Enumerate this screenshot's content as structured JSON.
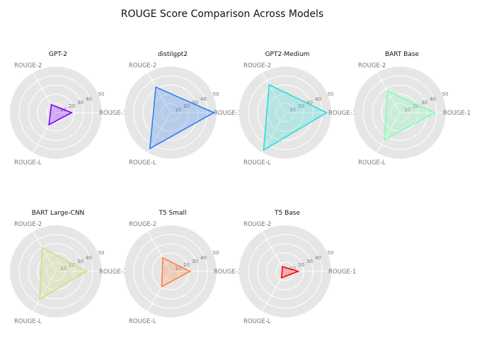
{
  "chart_data": {
    "type": "radar",
    "title": "ROUGE Score Comparison Across Models",
    "axes": [
      "ROUGE-1",
      "ROUGE-2",
      "ROUGE-L"
    ],
    "r_ticks": [
      10,
      20,
      30,
      40,
      50
    ],
    "rlim": [
      0,
      50
    ],
    "grid": true,
    "models": [
      {
        "name": "GPT-2",
        "values": [
          17,
          10,
          15
        ],
        "color": "#8000ff"
      },
      {
        "name": "distilgpt2",
        "values": [
          47,
          32,
          45
        ],
        "color": "#2e7ef7"
      },
      {
        "name": "GPT2-Medium",
        "values": [
          45,
          35,
          47
        ],
        "color": "#2adddd"
      },
      {
        "name": "BART Base",
        "values": [
          38,
          27,
          34
        ],
        "color": "#80ffb4"
      },
      {
        "name": "BART Large-CNN",
        "values": [
          33,
          30,
          35
        ],
        "color": "#d4dd80"
      },
      {
        "name": "T5 Small",
        "values": [
          21,
          17,
          19
        ],
        "color": "#ff7f3f"
      },
      {
        "name": "T5 Base",
        "values": [
          14,
          6,
          8
        ],
        "color": "#ff0000"
      }
    ]
  }
}
